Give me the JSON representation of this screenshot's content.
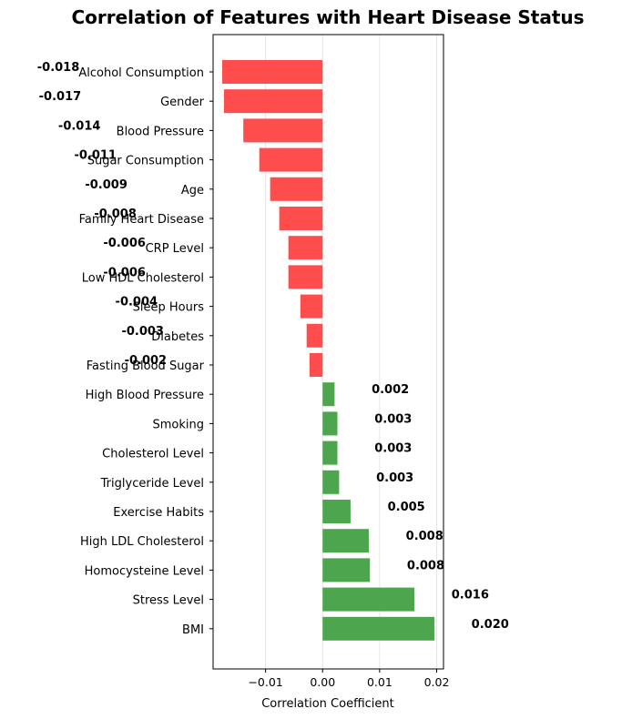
{
  "chart_data": {
    "type": "bar",
    "orientation": "horizontal",
    "title": "Correlation of Features with Heart Disease Status",
    "xlabel": "Correlation Coefficient",
    "ylabel": "",
    "xlim": [
      -0.0192,
      0.0212
    ],
    "xticks": [
      -0.01,
      0.0,
      0.01,
      0.02
    ],
    "xtick_labels": [
      "−0.01",
      "0.00",
      "0.01",
      "0.02"
    ],
    "grid": "vertical",
    "positive_color": "#4da64d",
    "negative_color": "#ff4d4d",
    "categories": [
      "Alcohol Consumption",
      "Gender",
      "Blood Pressure",
      "Sugar Consumption",
      "Age",
      "Family Heart Disease",
      "CRP Level",
      "Low HDL Cholesterol",
      "Sleep Hours",
      "Diabetes",
      "Fasting Blood Sugar",
      "High Blood Pressure",
      "Smoking",
      "Cholesterol Level",
      "Triglyceride Level",
      "Exercise Habits",
      "High LDL Cholesterol",
      "Homocysteine Level",
      "Stress Level",
      "BMI"
    ],
    "values": [
      -0.0176,
      -0.0173,
      -0.0139,
      -0.0111,
      -0.0092,
      -0.0076,
      -0.006,
      -0.006,
      -0.0039,
      -0.0028,
      -0.0023,
      0.0021,
      0.0026,
      0.0026,
      0.0029,
      0.0049,
      0.0081,
      0.0083,
      0.0161,
      0.0196
    ],
    "value_labels": [
      "-0.018",
      "-0.017",
      "-0.014",
      "-0.011",
      "-0.009",
      "-0.008",
      "-0.006",
      "-0.006",
      "-0.004",
      "-0.003",
      "-0.002",
      "0.002",
      "0.003",
      "0.003",
      "0.003",
      "0.005",
      "0.008",
      "0.008",
      "0.016",
      "0.020"
    ]
  }
}
